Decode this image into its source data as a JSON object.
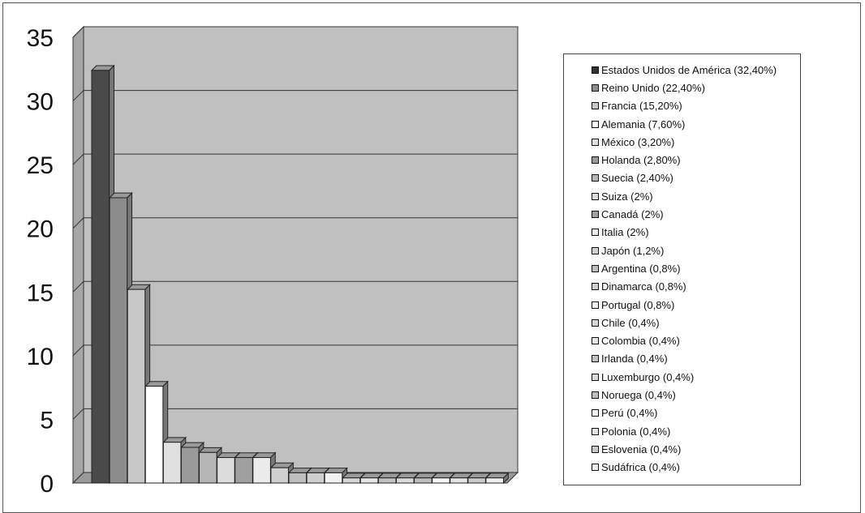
{
  "chart_data": {
    "type": "bar",
    "title": "",
    "xlabel": "",
    "ylabel": "",
    "ylim": [
      0,
      35
    ],
    "yticks": [
      "0",
      "5",
      "10",
      "15",
      "20",
      "25",
      "30",
      "35"
    ],
    "grid": true,
    "legend_position": "right",
    "categories": [
      "Estados Unidos de América",
      "Reino Unido",
      "Francia",
      "Alemania",
      "México",
      "Holanda",
      "Suecia",
      "Suiza",
      "Canadá",
      "Italia",
      "Japón",
      "Argentina",
      "Dinamarca",
      "Portugal",
      "Chile",
      "Colombia",
      "Irlanda",
      "Luxemburgo",
      "Noruega",
      "Perú",
      "Polonia",
      "Eslovenia",
      "Sudáfrica"
    ],
    "values": [
      32.4,
      22.4,
      15.2,
      7.6,
      3.2,
      2.8,
      2.4,
      2,
      2,
      2,
      1.2,
      0.8,
      0.8,
      0.8,
      0.4,
      0.4,
      0.4,
      0.4,
      0.4,
      0.4,
      0.4,
      0.4,
      0.4
    ],
    "legend": [
      "Estados Unidos de América (32,40%)",
      "Reino Unido (22,40%)",
      "Francia (15,20%)",
      "Alemania (7,60%)",
      "México (3,20%)",
      "Holanda (2,80%)",
      "Suecia (2,40%)",
      "Suiza (2%)",
      "Canadá (2%)",
      "Italia (2%)",
      "Japón (1,2%)",
      "Argentina (0,8%)",
      "Dinamarca (0,8%)",
      "Portugal (0,8%)",
      "Chile (0,4%)",
      "Colombia (0,4%)",
      "Irlanda (0,4%)",
      "Luxemburgo (0,4%)",
      "Noruega (0,4%)",
      "Perú (0,4%)",
      "Polonia (0,4%)",
      "Eslovenia (0,4%)",
      "Sudáfrica (0,4%)"
    ],
    "colors": [
      "#4a4a4a",
      "#8c8c8c",
      "#c8c8c8",
      "#ffffff",
      "#e0e0e0",
      "#9a9a9a",
      "#b5b5b5",
      "#dcdcdc",
      "#a0a0a0",
      "#ececec",
      "#d0d0d0",
      "#bdbdbd",
      "#cfcfcf",
      "#f2f2f2",
      "#d6d6d6",
      "#e6e6e6",
      "#c2c2c2",
      "#dadada",
      "#bfbfbf",
      "#f5f5f5",
      "#e3e3e3",
      "#cacaca",
      "#eeeeee"
    ],
    "wall_color": "#c0c0c0",
    "side_wall_color": "#a6a6a6",
    "floor_color": "#999999"
  }
}
